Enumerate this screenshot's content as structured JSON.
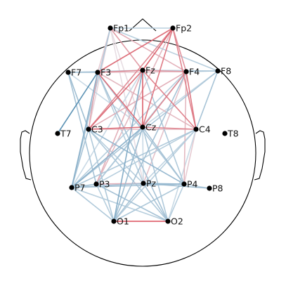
{
  "chart_data": {
    "type": "connectivity-topomap",
    "montage": "10-20",
    "colormap": "diverging blue-white-red",
    "colors": {
      "negative": "#3a7ca5",
      "neutral": "#e8eef4",
      "positive": "#d7303f"
    },
    "channels": [
      "Fp1",
      "Fp2",
      "F7",
      "F3",
      "Fz",
      "F4",
      "F8",
      "T7",
      "C3",
      "Cz",
      "C4",
      "T8",
      "P7",
      "P3",
      "Pz",
      "P4",
      "P8",
      "O1",
      "O2"
    ],
    "edges": [
      {
        "a": "O1",
        "b": "O2",
        "w": 0.9
      },
      {
        "a": "Fp2",
        "b": "F3",
        "w": 0.7
      },
      {
        "a": "Fp2",
        "b": "C3",
        "w": 0.55
      },
      {
        "a": "Fp2",
        "b": "Fz",
        "w": 0.75
      },
      {
        "a": "Fp2",
        "b": "Cz",
        "w": 0.65
      },
      {
        "a": "Fp2",
        "b": "C4",
        "w": 0.6
      },
      {
        "a": "Fp2",
        "b": "F4",
        "w": 0.5
      },
      {
        "a": "Fp2",
        "b": "P3",
        "w": 0.3
      },
      {
        "a": "Fp1",
        "b": "Fz",
        "w": 0.45
      },
      {
        "a": "Fp1",
        "b": "F4",
        "w": 0.35
      },
      {
        "a": "Fp1",
        "b": "Fp2",
        "w": -0.3
      },
      {
        "a": "Fp1",
        "b": "F3",
        "w": 0.2
      },
      {
        "a": "Fp1",
        "b": "C3",
        "w": 0.15
      },
      {
        "a": "Fp1",
        "b": "P7",
        "w": -0.35
      },
      {
        "a": "Fp1",
        "b": "F8",
        "w": -0.3
      },
      {
        "a": "Fp1",
        "b": "Cz",
        "w": 0.1
      },
      {
        "a": "Fp1",
        "b": "Pz",
        "w": 0.1
      },
      {
        "a": "F3",
        "b": "Fz",
        "w": 0.55
      },
      {
        "a": "F3",
        "b": "Cz",
        "w": 0.7
      },
      {
        "a": "F3",
        "b": "C3",
        "w": 0.4
      },
      {
        "a": "F3",
        "b": "C4",
        "w": 0.3
      },
      {
        "a": "F3",
        "b": "F4",
        "w": 0.25
      },
      {
        "a": "F3",
        "b": "P4",
        "w": -0.35
      },
      {
        "a": "F3",
        "b": "Pz",
        "w": -0.3
      },
      {
        "a": "F3",
        "b": "P7",
        "w": -0.55
      },
      {
        "a": "F3",
        "b": "O2",
        "w": -0.4
      },
      {
        "a": "F7",
        "b": "Fz",
        "w": -0.3
      },
      {
        "a": "F7",
        "b": "F3",
        "w": -0.4
      },
      {
        "a": "F7",
        "b": "C3",
        "w": -0.45
      },
      {
        "a": "F7",
        "b": "P3",
        "w": -0.4
      },
      {
        "a": "F7",
        "b": "Cz",
        "w": -0.2
      },
      {
        "a": "Fz",
        "b": "F4",
        "w": 0.45
      },
      {
        "a": "Fz",
        "b": "Cz",
        "w": 0.8
      },
      {
        "a": "Fz",
        "b": "C3",
        "w": 0.7
      },
      {
        "a": "Fz",
        "b": "C4",
        "w": 0.6
      },
      {
        "a": "Fz",
        "b": "P3",
        "w": 0.35
      },
      {
        "a": "Fz",
        "b": "P4",
        "w": -0.35
      },
      {
        "a": "Fz",
        "b": "O1",
        "w": -0.6
      },
      {
        "a": "Fz",
        "b": "F8",
        "w": -0.3
      },
      {
        "a": "Fz",
        "b": "P7",
        "w": -0.2
      },
      {
        "a": "F4",
        "b": "Cz",
        "w": 0.55
      },
      {
        "a": "F4",
        "b": "C4",
        "w": 0.65
      },
      {
        "a": "F4",
        "b": "C3",
        "w": 0.35
      },
      {
        "a": "F4",
        "b": "P4",
        "w": 0.3
      },
      {
        "a": "F4",
        "b": "P3",
        "w": -0.35
      },
      {
        "a": "F4",
        "b": "P7",
        "w": -0.3
      },
      {
        "a": "F4",
        "b": "O1",
        "w": -0.4
      },
      {
        "a": "F4",
        "b": "Pz",
        "w": 0.25
      },
      {
        "a": "F8",
        "b": "F4",
        "w": -0.35
      },
      {
        "a": "F8",
        "b": "P7",
        "w": -0.35
      },
      {
        "a": "F8",
        "b": "C4",
        "w": -0.4
      },
      {
        "a": "F8",
        "b": "Cz",
        "w": -0.2
      },
      {
        "a": "T7",
        "b": "F3",
        "w": -0.85
      },
      {
        "a": "C3",
        "b": "Cz",
        "w": 0.7
      },
      {
        "a": "C3",
        "b": "C4",
        "w": 0.3
      },
      {
        "a": "C3",
        "b": "Pz",
        "w": -0.3
      },
      {
        "a": "C3",
        "b": "P4",
        "w": -0.5
      },
      {
        "a": "C3",
        "b": "O1",
        "w": -0.35
      },
      {
        "a": "C3",
        "b": "O2",
        "w": -0.35
      },
      {
        "a": "C3",
        "b": "P7",
        "w": -0.4
      },
      {
        "a": "Cz",
        "b": "C4",
        "w": 0.55
      },
      {
        "a": "Cz",
        "b": "P7",
        "w": -0.55
      },
      {
        "a": "Cz",
        "b": "P4",
        "w": -0.4
      },
      {
        "a": "Cz",
        "b": "O1",
        "w": -0.45
      },
      {
        "a": "Cz",
        "b": "O2",
        "w": -0.35
      },
      {
        "a": "Cz",
        "b": "P3",
        "w": -0.25
      },
      {
        "a": "Cz",
        "b": "Pz",
        "w": -0.2
      },
      {
        "a": "C4",
        "b": "P7",
        "w": -0.35
      },
      {
        "a": "C4",
        "b": "P3",
        "w": -0.3
      },
      {
        "a": "C4",
        "b": "O1",
        "w": -0.3
      },
      {
        "a": "C4",
        "b": "Pz",
        "w": -0.25
      },
      {
        "a": "C4",
        "b": "P4",
        "w": 0.2
      },
      {
        "a": "C4",
        "b": "O2",
        "w": -0.2
      },
      {
        "a": "P7",
        "b": "P3",
        "w": -0.45
      },
      {
        "a": "P7",
        "b": "Pz",
        "w": -0.4
      },
      {
        "a": "P7",
        "b": "P4",
        "w": -0.4
      },
      {
        "a": "P7",
        "b": "O1",
        "w": -0.35
      },
      {
        "a": "P7",
        "b": "O2",
        "w": -0.3
      },
      {
        "a": "P3",
        "b": "Pz",
        "w": 0.35
      },
      {
        "a": "P3",
        "b": "P4",
        "w": -0.3
      },
      {
        "a": "P3",
        "b": "O1",
        "w": -0.3
      },
      {
        "a": "P3",
        "b": "O2",
        "w": -0.4
      },
      {
        "a": "Pz",
        "b": "P4",
        "w": -0.5
      },
      {
        "a": "Pz",
        "b": "P8",
        "w": -0.45
      },
      {
        "a": "Pz",
        "b": "O1",
        "w": -0.35
      },
      {
        "a": "Pz",
        "b": "O2",
        "w": -0.4
      },
      {
        "a": "P4",
        "b": "O1",
        "w": -0.35
      },
      {
        "a": "P4",
        "b": "O2",
        "w": -0.3
      },
      {
        "a": "P4",
        "b": "P8",
        "w": -0.25
      },
      {
        "a": "O1",
        "b": "Pz",
        "w": -0.2
      }
    ]
  }
}
